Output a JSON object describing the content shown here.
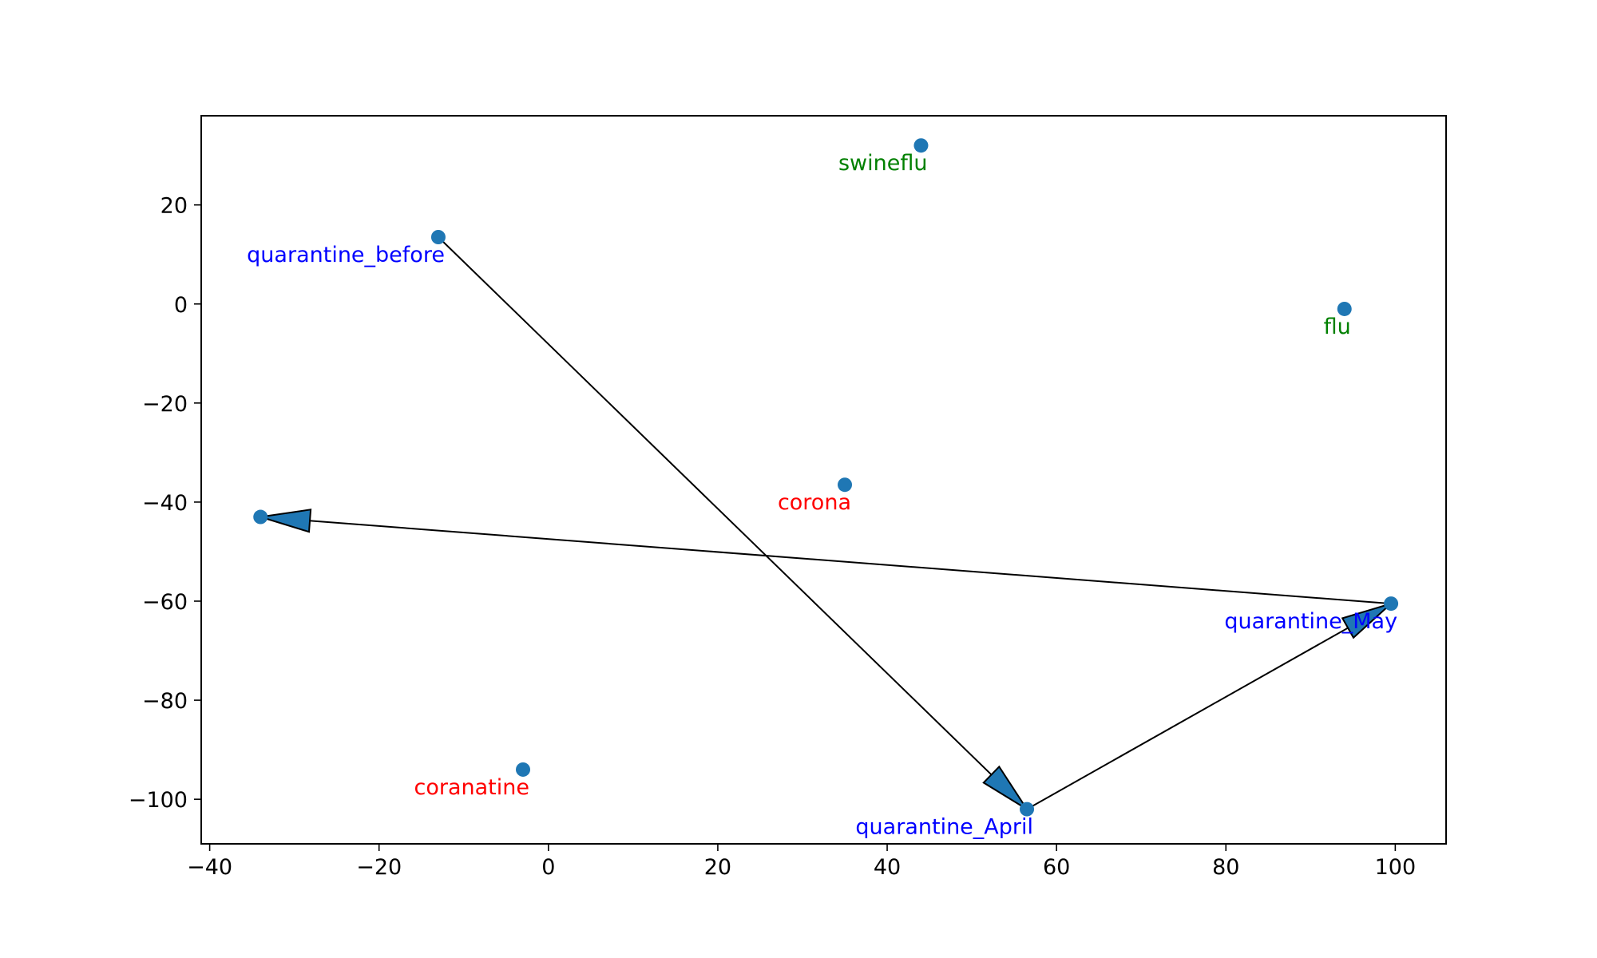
{
  "chart_data": {
    "type": "scatter",
    "title": "",
    "xlabel": "",
    "ylabel": "",
    "xlim": [
      -41,
      106
    ],
    "ylim": [
      -109,
      38
    ],
    "xticks": [
      -40,
      -20,
      0,
      20,
      40,
      60,
      80,
      100
    ],
    "yticks": [
      20,
      0,
      -20,
      -40,
      -60,
      -80,
      -100
    ],
    "xtick_labels": [
      "−40",
      "−20",
      "0",
      "20",
      "40",
      "60",
      "80",
      "100"
    ],
    "ytick_labels": [
      "20",
      "0",
      "−20",
      "−40",
      "−60",
      "−80",
      "−100"
    ],
    "grid": false,
    "marker_color": "#1f77b4",
    "points": [
      {
        "label": "swineflu",
        "x": 44,
        "y": 32,
        "color": "#008000"
      },
      {
        "label": "quarantine_before",
        "x": -13,
        "y": 13.5,
        "color": "#0000ff"
      },
      {
        "label": "flu",
        "x": 94,
        "y": -1,
        "color": "#008000"
      },
      {
        "label": "corona",
        "x": 35,
        "y": -36.5,
        "color": "#ff0000"
      },
      {
        "label": "",
        "x": -34,
        "y": -43,
        "color": "#0000ff"
      },
      {
        "label": "quarantine_May",
        "x": 99.5,
        "y": -60.5,
        "color": "#0000ff"
      },
      {
        "label": "coranatine",
        "x": -3,
        "y": -94,
        "color": "#ff0000"
      },
      {
        "label": "quarantine_April",
        "x": 56.5,
        "y": -102,
        "color": "#0000ff"
      }
    ],
    "arrows": [
      {
        "from": [
          -13,
          13.5
        ],
        "to": [
          56.5,
          -102
        ]
      },
      {
        "from": [
          56.5,
          -102
        ],
        "to": [
          99.5,
          -60.5
        ]
      },
      {
        "from": [
          99.5,
          -60.5
        ],
        "to": [
          -34,
          -43
        ]
      }
    ]
  }
}
